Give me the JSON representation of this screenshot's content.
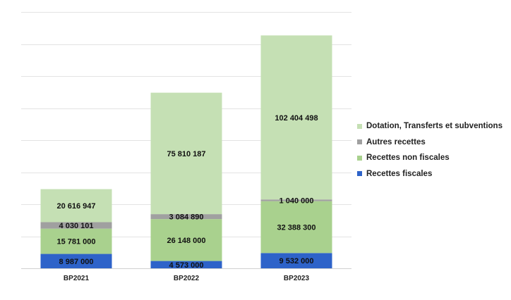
{
  "chart_data": {
    "type": "bar",
    "stacked": true,
    "title": "",
    "xlabel": "",
    "ylabel": "",
    "categories": [
      "BP2021",
      "BP2022",
      "BP2023"
    ],
    "ylim": [
      0,
      160000000
    ],
    "grid": true,
    "legend_position": "right",
    "series": [
      {
        "name": "Recettes fiscales",
        "color": "#2E63C9",
        "values": [
          8987000,
          4573000,
          9532000
        ],
        "labels": [
          "8 987 000",
          "4 573 000",
          "9 532 000"
        ]
      },
      {
        "name": "Recettes non fiscales",
        "color": "#A9D18E",
        "values": [
          15781000,
          26148000,
          32388300
        ],
        "labels": [
          "15 781 000",
          "26 148 000",
          "32 388 300"
        ]
      },
      {
        "name": "Autres recettes",
        "color": "#A0A0A0",
        "values": [
          4030101,
          3084890,
          1040000
        ],
        "labels": [
          "4 030 101",
          "3 084 890",
          "1 040 000"
        ]
      },
      {
        "name": "Dotation, Transferts et subventions",
        "color": "#C5E0B4",
        "values": [
          20616947,
          75810187,
          102404498
        ],
        "labels": [
          "20 616 947",
          "75 810 187",
          "102 404 498"
        ]
      }
    ],
    "legend_order": [
      3,
      2,
      1,
      0
    ]
  }
}
